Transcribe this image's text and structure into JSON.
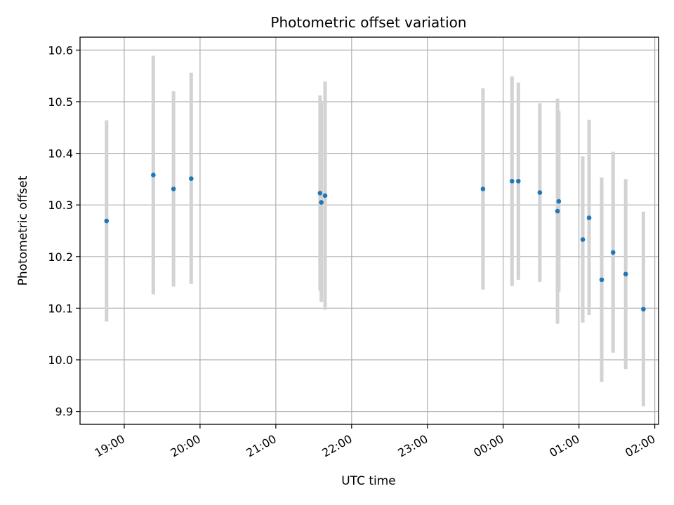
{
  "chart_data": {
    "type": "scatter",
    "title": "Photometric offset variation",
    "xlabel": "UTC time",
    "ylabel": "Photometric offset",
    "grid": true,
    "x_axis": {
      "kind": "time",
      "range": [
        "18:25",
        "02:03"
      ],
      "ticks": [
        "19:00",
        "20:00",
        "21:00",
        "22:00",
        "23:00",
        "00:00",
        "01:00",
        "02:00"
      ]
    },
    "y_axis": {
      "range": [
        9.875,
        10.625
      ],
      "ticks": [
        "9.9",
        "10.0",
        "10.1",
        "10.2",
        "10.3",
        "10.4",
        "10.5",
        "10.6"
      ]
    },
    "colors": {
      "points": "#1f77b4",
      "error_bars": "#d3d3d3",
      "grid": "#b0b0b0"
    },
    "series": [
      {
        "marker": "point",
        "points": [
          {
            "x": "18:46",
            "y": 10.269,
            "ylow": 10.074,
            "yhigh": 10.464
          },
          {
            "x": "19:23",
            "y": 10.358,
            "ylow": 10.127,
            "yhigh": 10.589
          },
          {
            "x": "19:39",
            "y": 10.331,
            "ylow": 10.142,
            "yhigh": 10.52
          },
          {
            "x": "19:53",
            "y": 10.351,
            "ylow": 10.147,
            "yhigh": 10.556
          },
          {
            "x": "21:35",
            "y": 10.323,
            "ylow": 10.134,
            "yhigh": 10.512
          },
          {
            "x": "21:36",
            "y": 10.305,
            "ylow": 10.112,
            "yhigh": 10.498
          },
          {
            "x": "21:39",
            "y": 10.318,
            "ylow": 10.097,
            "yhigh": 10.539
          },
          {
            "x": "23:44",
            "y": 10.331,
            "ylow": 10.136,
            "yhigh": 10.526
          },
          {
            "x": "00:07",
            "y": 10.346,
            "ylow": 10.143,
            "yhigh": 10.549
          },
          {
            "x": "00:12",
            "y": 10.346,
            "ylow": 10.155,
            "yhigh": 10.537
          },
          {
            "x": "00:29",
            "y": 10.324,
            "ylow": 10.151,
            "yhigh": 10.497
          },
          {
            "x": "00:43",
            "y": 10.288,
            "ylow": 10.07,
            "yhigh": 10.506
          },
          {
            "x": "00:44",
            "y": 10.307,
            "ylow": 10.132,
            "yhigh": 10.482
          },
          {
            "x": "01:03",
            "y": 10.233,
            "ylow": 10.072,
            "yhigh": 10.394
          },
          {
            "x": "01:08",
            "y": 10.275,
            "ylow": 10.087,
            "yhigh": 10.465
          },
          {
            "x": "01:18",
            "y": 10.155,
            "ylow": 9.957,
            "yhigh": 10.353
          },
          {
            "x": "01:27",
            "y": 10.208,
            "ylow": 10.014,
            "yhigh": 10.403
          },
          {
            "x": "01:37",
            "y": 10.166,
            "ylow": 9.982,
            "yhigh": 10.35
          },
          {
            "x": "01:51",
            "y": 10.098,
            "ylow": 9.91,
            "yhigh": 10.287
          }
        ]
      }
    ]
  }
}
